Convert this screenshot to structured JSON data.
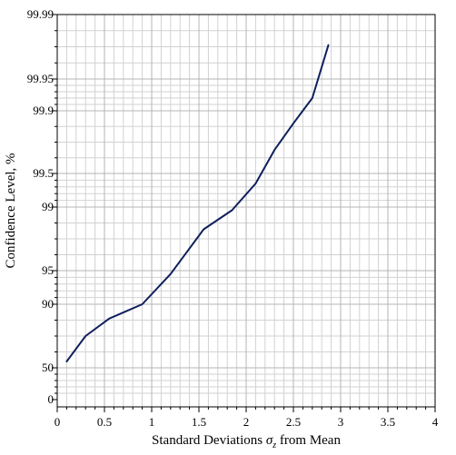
{
  "chart_data": {
    "type": "line",
    "title": "",
    "xlabel_prefix": "Standard Deviations ",
    "xlabel_symbol": "σ",
    "xlabel_subscript": "z",
    "xlabel_suffix": " from Mean",
    "ylabel": "Confidence Level, %",
    "xlim": [
      0,
      4
    ],
    "x_ticks": [
      "0",
      "0.5",
      "1",
      "1.5",
      "2",
      "2.5",
      "3",
      "3.5",
      "4"
    ],
    "y_scale": "probability",
    "y_ticks": [
      "0",
      "50",
      "90",
      "95",
      "99",
      "99.5",
      "99.9",
      "99.95",
      "99.99"
    ],
    "grid": true,
    "line_color": "#0f1f5c",
    "series": [
      {
        "x": [
          0.1,
          0.3,
          0.55,
          0.9,
          1.2,
          1.55,
          1.85,
          2.1,
          2.3,
          2.5,
          2.7,
          2.87
        ],
        "y": [
          54,
          70,
          81,
          90,
          94.5,
          97.6,
          98.8,
          99.35,
          99.65,
          99.82,
          99.92,
          99.971
        ]
      }
    ]
  }
}
